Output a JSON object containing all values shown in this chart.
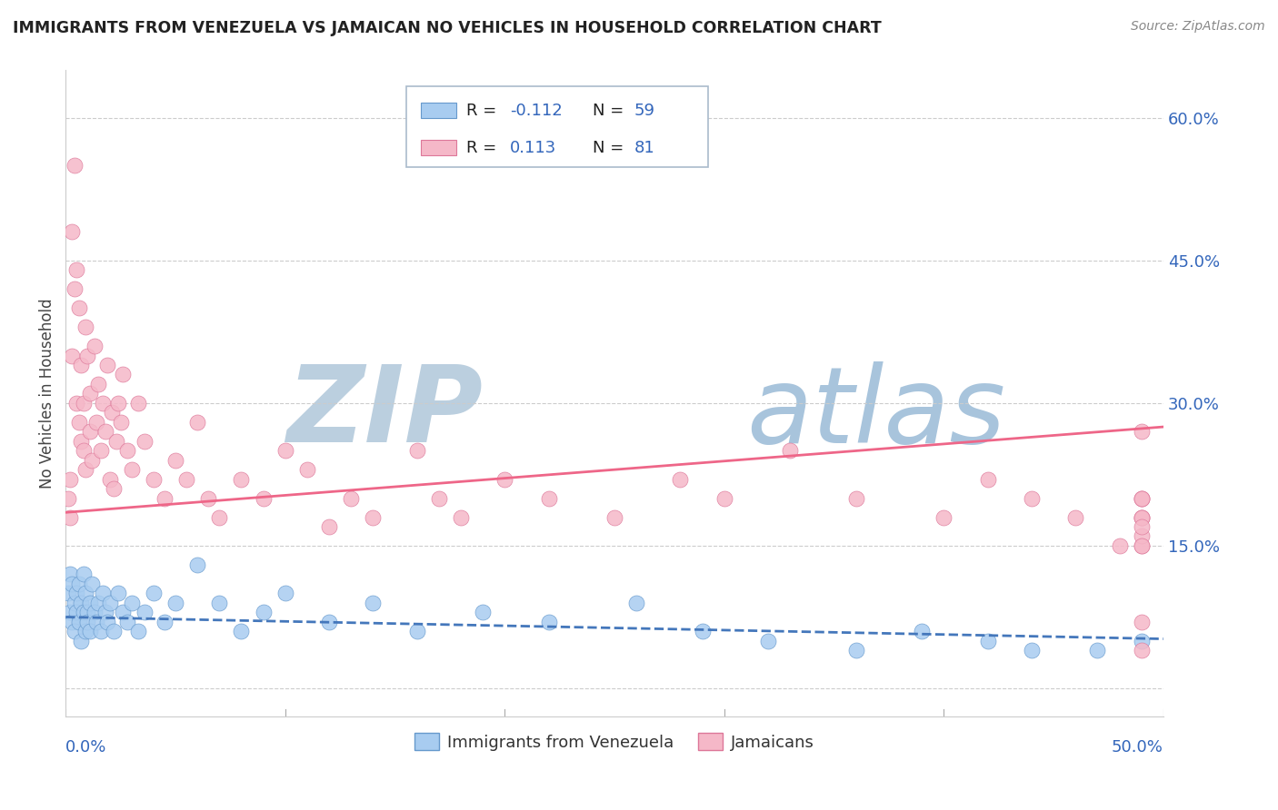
{
  "title": "IMMIGRANTS FROM VENEZUELA VS JAMAICAN NO VEHICLES IN HOUSEHOLD CORRELATION CHART",
  "source": "Source: ZipAtlas.com",
  "ylabel": "No Vehicles in Household",
  "xmin": 0.0,
  "xmax": 0.5,
  "ymin": -0.03,
  "ymax": 0.65,
  "color_blue": "#A8CCF0",
  "color_blue_edge": "#6699CC",
  "color_pink": "#F5B8C8",
  "color_pink_edge": "#DD7799",
  "color_line_blue": "#4477BB",
  "color_line_pink": "#EE6688",
  "watermark_color": "#C8D8EA",
  "legend_text_color": "#3366BB",
  "blue_x": [
    0.001,
    0.002,
    0.002,
    0.003,
    0.003,
    0.004,
    0.004,
    0.005,
    0.005,
    0.006,
    0.006,
    0.007,
    0.007,
    0.008,
    0.008,
    0.009,
    0.009,
    0.01,
    0.01,
    0.011,
    0.011,
    0.012,
    0.013,
    0.014,
    0.015,
    0.016,
    0.017,
    0.018,
    0.019,
    0.02,
    0.022,
    0.024,
    0.026,
    0.028,
    0.03,
    0.033,
    0.036,
    0.04,
    0.045,
    0.05,
    0.06,
    0.07,
    0.08,
    0.09,
    0.1,
    0.12,
    0.14,
    0.16,
    0.19,
    0.22,
    0.26,
    0.29,
    0.32,
    0.36,
    0.39,
    0.42,
    0.44,
    0.47,
    0.49
  ],
  "blue_y": [
    0.1,
    0.08,
    0.12,
    0.07,
    0.11,
    0.09,
    0.06,
    0.1,
    0.08,
    0.07,
    0.11,
    0.09,
    0.05,
    0.08,
    0.12,
    0.06,
    0.1,
    0.08,
    0.07,
    0.09,
    0.06,
    0.11,
    0.08,
    0.07,
    0.09,
    0.06,
    0.1,
    0.08,
    0.07,
    0.09,
    0.06,
    0.1,
    0.08,
    0.07,
    0.09,
    0.06,
    0.08,
    0.1,
    0.07,
    0.09,
    0.13,
    0.09,
    0.06,
    0.08,
    0.1,
    0.07,
    0.09,
    0.06,
    0.08,
    0.07,
    0.09,
    0.06,
    0.05,
    0.04,
    0.06,
    0.05,
    0.04,
    0.04,
    0.05
  ],
  "pink_x": [
    0.001,
    0.002,
    0.002,
    0.003,
    0.003,
    0.004,
    0.004,
    0.005,
    0.005,
    0.006,
    0.006,
    0.007,
    0.007,
    0.008,
    0.008,
    0.009,
    0.009,
    0.01,
    0.011,
    0.011,
    0.012,
    0.013,
    0.014,
    0.015,
    0.016,
    0.017,
    0.018,
    0.019,
    0.02,
    0.021,
    0.022,
    0.023,
    0.024,
    0.025,
    0.026,
    0.028,
    0.03,
    0.033,
    0.036,
    0.04,
    0.045,
    0.05,
    0.055,
    0.06,
    0.065,
    0.07,
    0.08,
    0.09,
    0.1,
    0.11,
    0.12,
    0.13,
    0.14,
    0.16,
    0.17,
    0.18,
    0.2,
    0.22,
    0.25,
    0.28,
    0.3,
    0.33,
    0.36,
    0.4,
    0.42,
    0.44,
    0.46,
    0.48,
    0.49,
    0.49,
    0.49,
    0.49,
    0.49,
    0.49,
    0.49,
    0.49,
    0.49,
    0.49,
    0.49,
    0.49,
    0.49
  ],
  "pink_y": [
    0.2,
    0.18,
    0.22,
    0.48,
    0.35,
    0.55,
    0.42,
    0.44,
    0.3,
    0.28,
    0.4,
    0.26,
    0.34,
    0.3,
    0.25,
    0.38,
    0.23,
    0.35,
    0.27,
    0.31,
    0.24,
    0.36,
    0.28,
    0.32,
    0.25,
    0.3,
    0.27,
    0.34,
    0.22,
    0.29,
    0.21,
    0.26,
    0.3,
    0.28,
    0.33,
    0.25,
    0.23,
    0.3,
    0.26,
    0.22,
    0.2,
    0.24,
    0.22,
    0.28,
    0.2,
    0.18,
    0.22,
    0.2,
    0.25,
    0.23,
    0.17,
    0.2,
    0.18,
    0.25,
    0.2,
    0.18,
    0.22,
    0.2,
    0.18,
    0.22,
    0.2,
    0.25,
    0.2,
    0.18,
    0.22,
    0.2,
    0.18,
    0.15,
    0.27,
    0.18,
    0.2,
    0.15,
    0.18,
    0.2,
    0.16,
    0.18,
    0.15,
    0.2,
    0.17,
    0.04,
    0.07
  ]
}
